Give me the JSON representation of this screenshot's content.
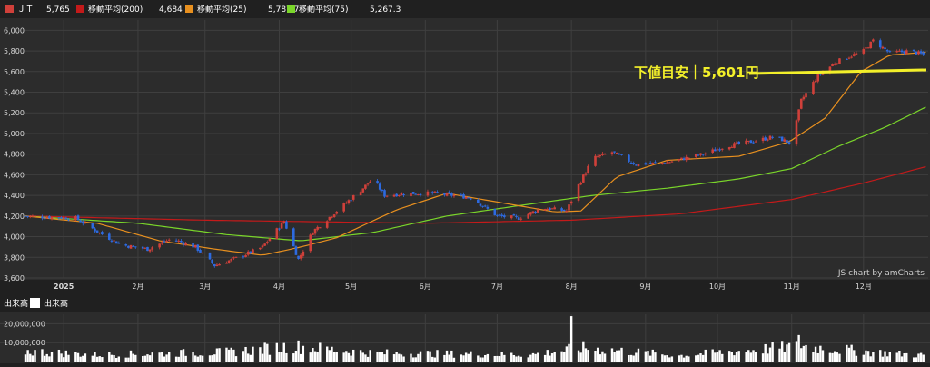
{
  "colors": {
    "background": "#202020",
    "plot_bg": "#2b2b2b",
    "grid": "#3f3f3f",
    "axis_text": "#d8d8d8",
    "candle_up": "#d0403a",
    "candle_down": "#2d6ae0",
    "ma200": "#c41a1a",
    "ma25": "#e8901f",
    "ma75": "#7ad62a",
    "target_line": "#f2ef2a",
    "volume": "#ffffff"
  },
  "legend": [
    {
      "label": "ＪＴ",
      "value": "5,765",
      "color": "#d0403a"
    },
    {
      "label": "移動平均(200)",
      "value": "4,684",
      "color": "#c41a1a"
    },
    {
      "label": "移動平均(25)",
      "value": "5,787.7",
      "color": "#e8901f"
    },
    {
      "label": "移動平均(75)",
      "value": "5,267.3",
      "color": "#7ad62a"
    }
  ],
  "credit": "JS chart by amCharts",
  "annotation": {
    "text": "下値目安｜5,601円",
    "value": 5601
  },
  "volume_panel": {
    "legend_left": "出来高",
    "legend_right": "出来高",
    "tick_labels": [
      "20,000,000",
      "10,000,000"
    ],
    "ticks": [
      20000000,
      10000000
    ]
  },
  "chart_data": {
    "type": "candlestick",
    "ylim": [
      3600,
      6100
    ],
    "yticks": [
      3600,
      3800,
      4000,
      4200,
      4400,
      4600,
      4800,
      5000,
      5200,
      5400,
      5600,
      5800,
      6000
    ],
    "ytick_labels": [
      "3,600",
      "3,800",
      "4,000",
      "4,200",
      "4,400",
      "4,600",
      "4,800",
      "5,000",
      "5,200",
      "5,400",
      "5,600",
      "5,800",
      "6,000"
    ],
    "x_start": "2024-12-16",
    "x_end": "2025-12-28",
    "xtick_labels": [
      "2025",
      "2月",
      "3月",
      "4月",
      "5月",
      "6月",
      "7月",
      "8月",
      "9月",
      "10月",
      "11月",
      "12月"
    ],
    "xtick_dates": [
      "2025-01-01",
      "2025-02-01",
      "2025-03-01",
      "2025-04-01",
      "2025-05-01",
      "2025-06-01",
      "2025-07-01",
      "2025-08-01",
      "2025-09-01",
      "2025-10-01",
      "2025-11-01",
      "2025-12-01"
    ],
    "price_path": [
      [
        "2024-12-16",
        4200
      ],
      [
        "2025-01-06",
        4180
      ],
      [
        "2025-01-15",
        4050
      ],
      [
        "2025-01-25",
        3920
      ],
      [
        "2025-02-05",
        3880
      ],
      [
        "2025-02-15",
        3980
      ],
      [
        "2025-02-25",
        3900
      ],
      [
        "2025-03-05",
        3720
      ],
      [
        "2025-03-15",
        3800
      ],
      [
        "2025-03-25",
        3900
      ],
      [
        "2025-04-03",
        4150
      ],
      [
        "2025-04-09",
        3780
      ],
      [
        "2025-04-15",
        4050
      ],
      [
        "2025-04-25",
        4250
      ],
      [
        "2025-05-05",
        4450
      ],
      [
        "2025-05-10",
        4560
      ],
      [
        "2025-05-15",
        4400
      ],
      [
        "2025-05-25",
        4420
      ],
      [
        "2025-06-05",
        4420
      ],
      [
        "2025-06-20",
        4380
      ],
      [
        "2025-07-01",
        4200
      ],
      [
        "2025-07-10",
        4180
      ],
      [
        "2025-07-20",
        4280
      ],
      [
        "2025-07-30",
        4250
      ],
      [
        "2025-08-04",
        4500
      ],
      [
        "2025-08-10",
        4760
      ],
      [
        "2025-08-18",
        4820
      ],
      [
        "2025-08-28",
        4700
      ],
      [
        "2025-09-10",
        4720
      ],
      [
        "2025-09-25",
        4800
      ],
      [
        "2025-10-05",
        4880
      ],
      [
        "2025-10-15",
        4920
      ],
      [
        "2025-10-25",
        4970
      ],
      [
        "2025-11-01",
        4900
      ],
      [
        "2025-11-05",
        5320
      ],
      [
        "2025-11-12",
        5560
      ],
      [
        "2025-11-20",
        5700
      ],
      [
        "2025-12-01",
        5800
      ],
      [
        "2025-12-05",
        5900
      ],
      [
        "2025-12-12",
        5780
      ],
      [
        "2025-12-20",
        5800
      ],
      [
        "2025-12-27",
        5760
      ]
    ],
    "ma25": [
      [
        "2024-12-16",
        4200
      ],
      [
        "2025-01-15",
        4130
      ],
      [
        "2025-02-10",
        3960
      ],
      [
        "2025-03-05",
        3880
      ],
      [
        "2025-03-25",
        3820
      ],
      [
        "2025-04-10",
        3900
      ],
      [
        "2025-04-25",
        3990
      ],
      [
        "2025-05-20",
        4260
      ],
      [
        "2025-06-10",
        4420
      ],
      [
        "2025-07-05",
        4320
      ],
      [
        "2025-07-25",
        4240
      ],
      [
        "2025-08-05",
        4250
      ],
      [
        "2025-08-20",
        4580
      ],
      [
        "2025-09-10",
        4740
      ],
      [
        "2025-10-10",
        4780
      ],
      [
        "2025-10-31",
        4920
      ],
      [
        "2025-11-15",
        5150
      ],
      [
        "2025-11-30",
        5600
      ],
      [
        "2025-12-12",
        5760
      ],
      [
        "2025-12-28",
        5790
      ]
    ],
    "ma75": [
      [
        "2024-12-16",
        4200
      ],
      [
        "2025-02-01",
        4130
      ],
      [
        "2025-03-10",
        4020
      ],
      [
        "2025-04-10",
        3960
      ],
      [
        "2025-05-10",
        4040
      ],
      [
        "2025-06-10",
        4200
      ],
      [
        "2025-07-10",
        4300
      ],
      [
        "2025-08-10",
        4400
      ],
      [
        "2025-09-10",
        4470
      ],
      [
        "2025-10-10",
        4560
      ],
      [
        "2025-11-01",
        4660
      ],
      [
        "2025-11-20",
        4870
      ],
      [
        "2025-12-10",
        5060
      ],
      [
        "2025-12-28",
        5267
      ]
    ],
    "ma200": [
      [
        "2024-12-16",
        4200
      ],
      [
        "2025-03-01",
        4160
      ],
      [
        "2025-06-01",
        4130
      ],
      [
        "2025-08-01",
        4160
      ],
      [
        "2025-09-15",
        4220
      ],
      [
        "2025-11-01",
        4360
      ],
      [
        "2025-12-01",
        4520
      ],
      [
        "2025-12-28",
        4684
      ]
    ],
    "volume_profile": [
      [
        "2024-12-16",
        6000000
      ],
      [
        "2025-01-15",
        4000000
      ],
      [
        "2025-03-10",
        5500000
      ],
      [
        "2025-04-07",
        9000000
      ],
      [
        "2025-05-10",
        5000000
      ],
      [
        "2025-07-15",
        4000000
      ],
      [
        "2025-08-06",
        8000000
      ],
      [
        "2025-09-15",
        3500000
      ],
      [
        "2025-11-05",
        9000000
      ],
      [
        "2025-12-10",
        5000000
      ],
      [
        "2025-12-28",
        3500000
      ]
    ],
    "volume_spikes": [
      [
        "2025-08-01",
        24000000
      ],
      [
        "2025-11-04",
        14000000
      ]
    ],
    "ylim_volume": [
      0,
      25000000
    ]
  }
}
